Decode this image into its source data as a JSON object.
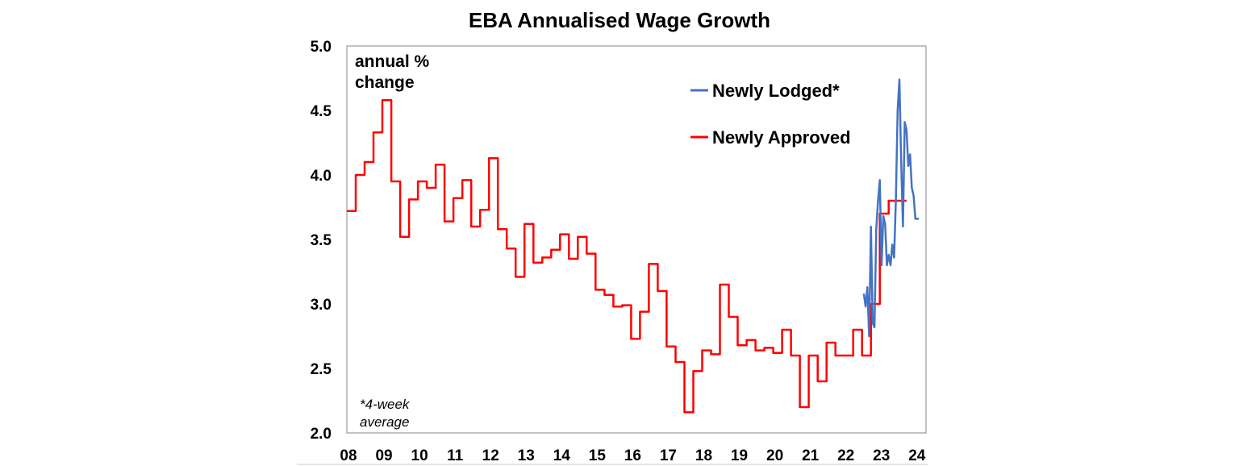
{
  "chart_data": {
    "type": "line",
    "title": "EBA Annualised Wage Growth",
    "ylabel_note": "annual % change",
    "ylabel_note_lines": [
      "annual %",
      "change"
    ],
    "footnote_lines": [
      "*4-week",
      "average"
    ],
    "xlim": [
      2008,
      2024.3
    ],
    "ylim": [
      2.0,
      5.0
    ],
    "yticks": [
      2.0,
      2.5,
      3.0,
      3.5,
      4.0,
      4.5,
      5.0
    ],
    "ytick_labels": [
      "2.0",
      "2.5",
      "3.0",
      "3.5",
      "4.0",
      "4.5",
      "5.0"
    ],
    "xticks": [
      2008,
      2009,
      2010,
      2011,
      2012,
      2013,
      2014,
      2015,
      2016,
      2017,
      2018,
      2019,
      2020,
      2021,
      2022,
      2023,
      2024
    ],
    "xtick_labels": [
      "08",
      "09",
      "10",
      "11",
      "12",
      "13",
      "14",
      "15",
      "16",
      "17",
      "18",
      "19",
      "20",
      "21",
      "22",
      "23",
      "24"
    ],
    "legend_position": "top-right",
    "grid": false,
    "colors": {
      "Newly Lodged*": "#4472c4",
      "Newly Approved": "#ff0000"
    },
    "series": [
      {
        "name": "Newly Approved",
        "step": true,
        "x": [
          2008.0,
          2008.25,
          2008.5,
          2008.75,
          2009.0,
          2009.25,
          2009.5,
          2009.75,
          2010.0,
          2010.25,
          2010.5,
          2010.75,
          2011.0,
          2011.25,
          2011.5,
          2011.75,
          2012.0,
          2012.25,
          2012.5,
          2012.75,
          2013.0,
          2013.25,
          2013.5,
          2013.75,
          2014.0,
          2014.25,
          2014.5,
          2014.75,
          2015.0,
          2015.25,
          2015.5,
          2015.75,
          2016.0,
          2016.25,
          2016.5,
          2016.75,
          2017.0,
          2017.25,
          2017.5,
          2017.75,
          2018.0,
          2018.25,
          2018.5,
          2018.75,
          2019.0,
          2019.25,
          2019.5,
          2019.75,
          2020.0,
          2020.25,
          2020.5,
          2020.75,
          2021.0,
          2021.25,
          2021.5,
          2021.75,
          2022.0,
          2022.25,
          2022.5,
          2022.75,
          2023.0,
          2023.25,
          2023.5
        ],
        "values": [
          3.72,
          4.0,
          4.1,
          4.33,
          4.58,
          3.95,
          3.52,
          3.81,
          3.95,
          3.9,
          4.08,
          3.64,
          3.82,
          3.96,
          3.6,
          3.73,
          4.13,
          3.58,
          3.43,
          3.21,
          3.62,
          3.32,
          3.36,
          3.42,
          3.54,
          3.35,
          3.52,
          3.39,
          3.11,
          3.07,
          2.98,
          2.99,
          2.73,
          2.94,
          3.31,
          3.1,
          2.67,
          2.55,
          2.16,
          2.48,
          2.64,
          2.61,
          3.15,
          2.9,
          2.68,
          2.72,
          2.64,
          2.66,
          2.62,
          2.8,
          2.6,
          2.2,
          2.6,
          2.4,
          2.7,
          2.6,
          2.6,
          2.8,
          2.6,
          3.0,
          3.7,
          3.8,
          3.8
        ]
      },
      {
        "name": "Newly Lodged*",
        "step": false,
        "x": [
          2022.55,
          2022.6,
          2022.65,
          2022.7,
          2022.75,
          2022.8,
          2022.85,
          2022.9,
          2022.95,
          2023.0,
          2023.05,
          2023.1,
          2023.15,
          2023.2,
          2023.25,
          2023.3,
          2023.35,
          2023.4,
          2023.45,
          2023.5,
          2023.55,
          2023.6,
          2023.65,
          2023.7,
          2023.75,
          2023.8,
          2023.85,
          2023.9,
          2023.95,
          2024.0,
          2024.05,
          2024.1
        ],
        "values": [
          3.08,
          2.98,
          3.13,
          2.75,
          3.6,
          2.85,
          2.82,
          3.58,
          3.8,
          3.96,
          3.3,
          3.68,
          3.62,
          3.3,
          3.38,
          3.3,
          3.46,
          3.36,
          3.8,
          4.5,
          4.74,
          4.1,
          3.6,
          4.41,
          4.35,
          4.07,
          4.16,
          3.9,
          3.84,
          3.66,
          3.66,
          3.66
        ]
      }
    ]
  }
}
